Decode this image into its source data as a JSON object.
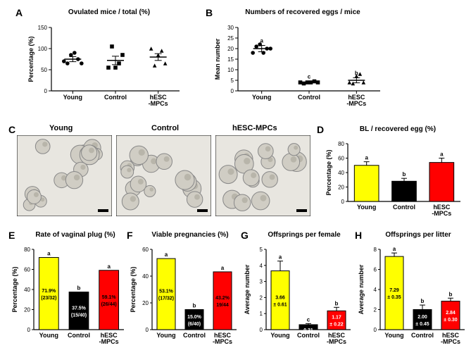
{
  "panels": {
    "A": {
      "label": "A",
      "title": "Ovulated mice / total (%)"
    },
    "B": {
      "label": "B",
      "title": "Numbers of recovered eggs / mice"
    },
    "C": {
      "label": "C"
    },
    "D": {
      "label": "D",
      "title": "BL / recovered egg (%)"
    },
    "E": {
      "label": "E",
      "title": "Rate of vaginal plug (%)"
    },
    "F": {
      "label": "F",
      "title": "Viable pregnancies (%)"
    },
    "G": {
      "label": "G",
      "title": "Offsprings per female"
    },
    "H": {
      "label": "H",
      "title": "Offsprings per litter"
    }
  },
  "groups": [
    "Young",
    "Control",
    "hESC-MPCs"
  ],
  "groups_split": [
    "Young",
    "Control",
    "hESC\n-MPCs"
  ],
  "colors": {
    "young": "#ffff00",
    "control": "#000000",
    "hesc": "#ff0000",
    "bg": "#ffffff",
    "axis": "#000000"
  },
  "A": {
    "ylabel": "Percentage (%)",
    "ylim": [
      0,
      150
    ],
    "yticks": [
      0,
      50,
      100,
      150
    ],
    "data": {
      "Young": {
        "mean": 75,
        "sem": 6,
        "points": [
          70,
          65,
          85,
          90,
          75,
          65
        ],
        "shape": "circle"
      },
      "Control": {
        "mean": 72,
        "sem": 10,
        "points": [
          55,
          105,
          55,
          65,
          85
        ],
        "shape": "square"
      },
      "hESC": {
        "mean": 80,
        "sem": 8,
        "points": [
          100,
          60,
          85,
          95,
          65
        ],
        "shape": "triangle"
      }
    }
  },
  "B": {
    "ylabel": "Mean number",
    "ylim": [
      0,
      30
    ],
    "yticks": [
      0,
      5,
      10,
      15,
      20,
      25,
      30
    ],
    "data": {
      "Young": {
        "mean": 20,
        "sem": 1.5,
        "points": [
          18,
          21,
          22,
          18,
          20,
          20
        ],
        "shape": "circle",
        "sig": "a"
      },
      "Control": {
        "mean": 4,
        "sem": 0.5,
        "points": [
          4,
          3.5,
          4,
          4,
          4.5,
          4
        ],
        "shape": "square",
        "sig": "c"
      },
      "hESC": {
        "mean": 5,
        "sem": 1.2,
        "points": [
          4,
          3.5,
          7,
          8,
          4
        ],
        "shape": "triangle",
        "sig": "b"
      }
    }
  },
  "C": {
    "labels": [
      "Young",
      "Control",
      "hESC-MPCs"
    ]
  },
  "D": {
    "ylabel": "Percentage (%)",
    "ylim": [
      0,
      80
    ],
    "yticks": [
      0,
      20,
      40,
      60,
      80
    ],
    "bars": [
      {
        "label": "Young",
        "value": 50,
        "sem": 5,
        "color": "#ffff00",
        "sig": "a"
      },
      {
        "label": "Control",
        "value": 28,
        "sem": 4,
        "color": "#000000",
        "sig": "b"
      },
      {
        "label": "hESC-MPCs",
        "value": 54,
        "sem": 6,
        "color": "#ff0000",
        "sig": "a"
      }
    ]
  },
  "E": {
    "ylabel": "Percentage (%)",
    "ylim": [
      0,
      80
    ],
    "yticks": [
      0,
      20,
      40,
      60,
      80
    ],
    "bars": [
      {
        "label": "Young",
        "value": 71.9,
        "color": "#ffff00",
        "sig": "a",
        "text1": "71.9%",
        "text2": "(23/32)",
        "textcolor": "#000"
      },
      {
        "label": "Control",
        "value": 37.5,
        "color": "#000000",
        "sig": "b",
        "text1": "37.5%",
        "text2": "(15/40)",
        "textcolor": "#fff"
      },
      {
        "label": "hESC-MPCs",
        "value": 59.1,
        "color": "#ff0000",
        "sig": "a",
        "text1": "59.1%",
        "text2": "(26/44)",
        "textcolor": "#000"
      }
    ]
  },
  "F": {
    "ylabel": "Percentage (%)",
    "ylim": [
      0,
      60
    ],
    "yticks": [
      0,
      20,
      40,
      60
    ],
    "bars": [
      {
        "label": "Young",
        "value": 53.1,
        "color": "#ffff00",
        "sig": "a",
        "text1": "53.1%",
        "text2": "(17/32)",
        "textcolor": "#000"
      },
      {
        "label": "Control",
        "value": 15.0,
        "color": "#000000",
        "sig": "b",
        "text1": "15.0%",
        "text2": "(6/40)",
        "textcolor": "#fff"
      },
      {
        "label": "hESC-MPCs",
        "value": 43.2,
        "color": "#ff0000",
        "sig": "a",
        "text1": "43.2%",
        "text2": "19/44",
        "textcolor": "#000"
      }
    ]
  },
  "G": {
    "ylabel": "Average number",
    "ylim": [
      0,
      5
    ],
    "yticks": [
      0,
      1,
      2,
      3,
      4,
      5
    ],
    "bars": [
      {
        "label": "Young",
        "value": 3.66,
        "sem": 0.61,
        "color": "#ffff00",
        "sig": "a",
        "text1": "3.66",
        "text2": "± 0.61",
        "textcolor": "#000"
      },
      {
        "label": "Control",
        "value": 0.31,
        "sem": 0.07,
        "color": "#000000",
        "sig": "c",
        "text1": "0.31",
        "text2": "± 0.07",
        "textcolor": "#fff"
      },
      {
        "label": "hESC-MPCs",
        "value": 1.17,
        "sem": 0.22,
        "color": "#ff0000",
        "sig": "b",
        "text1": "1.17",
        "text2": "± 0.22",
        "textcolor": "#fff"
      }
    ]
  },
  "H": {
    "ylabel": "Average number",
    "ylim": [
      0,
      8
    ],
    "yticks": [
      0,
      2,
      4,
      6,
      8
    ],
    "bars": [
      {
        "label": "Young",
        "value": 7.29,
        "sem": 0.35,
        "color": "#ffff00",
        "sig": "a",
        "text1": "7.29",
        "text2": "± 0.35",
        "textcolor": "#000"
      },
      {
        "label": "Control",
        "value": 2.0,
        "sem": 0.45,
        "color": "#000000",
        "sig": "b",
        "text1": "2.00",
        "text2": "± 0.45",
        "textcolor": "#fff"
      },
      {
        "label": "hESC-MPCs",
        "value": 2.84,
        "sem": 0.3,
        "color": "#ff0000",
        "sig": "b",
        "text1": "2.84",
        "text2": "± 0.30",
        "textcolor": "#fff"
      }
    ]
  }
}
